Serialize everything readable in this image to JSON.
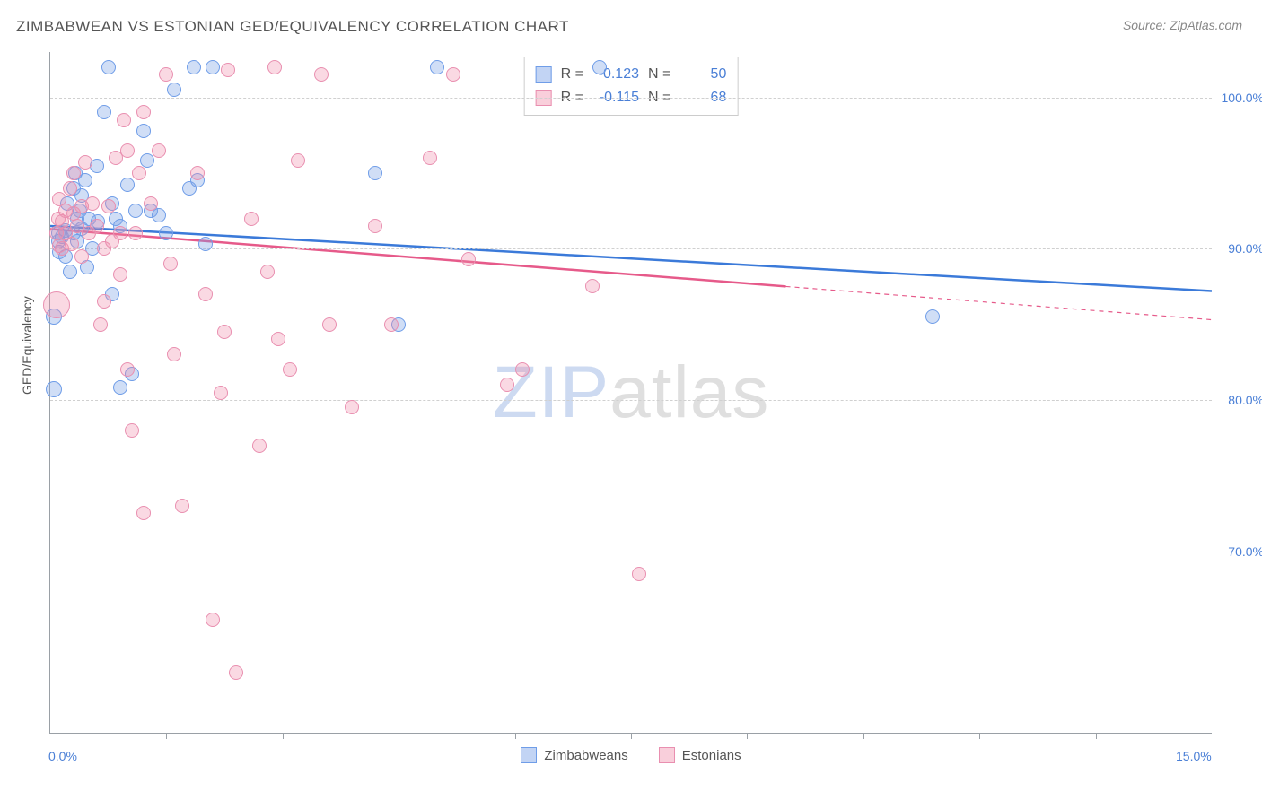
{
  "title": "ZIMBABWEAN VS ESTONIAN GED/EQUIVALENCY CORRELATION CHART",
  "source": "Source: ZipAtlas.com",
  "watermark": {
    "prefix_bold": "Z",
    "prefix_rest": "IP",
    "suffix": "atlas"
  },
  "ylabel": "GED/Equivalency",
  "chart": {
    "type": "scatter",
    "xlim": [
      0.0,
      15.0
    ],
    "ylim": [
      58.0,
      103.0
    ],
    "x_axis_labels": [
      {
        "value": 0.0,
        "text": "0.0%"
      },
      {
        "value": 15.0,
        "text": "15.0%"
      }
    ],
    "y_gridlines": [
      {
        "value": 70.0,
        "text": "70.0%"
      },
      {
        "value": 80.0,
        "text": "80.0%"
      },
      {
        "value": 90.0,
        "text": "90.0%"
      },
      {
        "value": 100.0,
        "text": "100.0%"
      }
    ],
    "x_ticks": [
      1.5,
      3.0,
      4.5,
      6.0,
      7.5,
      9.0,
      10.5,
      12.0,
      13.5
    ],
    "background_color": "#ffffff",
    "grid_color": "#d0d0d0",
    "axis_color": "#9aa0a6",
    "tick_label_color": "#4a7fd6",
    "series": [
      {
        "key": "zimbabweans",
        "label": "Zimbabweans",
        "fill": "rgba(120,160,230,0.35)",
        "stroke": "#6f9de8",
        "line_color": "#3b7ad9",
        "r_value": "-0.123",
        "n_value": "50",
        "regression": {
          "y_at_xmin": 91.5,
          "y_at_xmax": 87.2,
          "dash_from_x": null
        },
        "default_size": 16,
        "points": [
          {
            "x": 0.1,
            "y": 91.0
          },
          {
            "x": 0.1,
            "y": 90.5
          },
          {
            "x": 0.12,
            "y": 89.8
          },
          {
            "x": 0.15,
            "y": 90.8
          },
          {
            "x": 0.2,
            "y": 91.2
          },
          {
            "x": 0.2,
            "y": 89.5
          },
          {
            "x": 0.22,
            "y": 93.0
          },
          {
            "x": 0.25,
            "y": 88.5
          },
          {
            "x": 0.3,
            "y": 91.0
          },
          {
            "x": 0.3,
            "y": 94.0
          },
          {
            "x": 0.32,
            "y": 95.0
          },
          {
            "x": 0.35,
            "y": 92.0
          },
          {
            "x": 0.35,
            "y": 90.5
          },
          {
            "x": 0.38,
            "y": 92.5
          },
          {
            "x": 0.4,
            "y": 93.5
          },
          {
            "x": 0.4,
            "y": 91.3
          },
          {
            "x": 0.45,
            "y": 94.5
          },
          {
            "x": 0.48,
            "y": 88.8
          },
          {
            "x": 0.5,
            "y": 92.0
          },
          {
            "x": 0.55,
            "y": 90.0
          },
          {
            "x": 0.6,
            "y": 95.5
          },
          {
            "x": 0.62,
            "y": 91.8
          },
          {
            "x": 0.7,
            "y": 99.0
          },
          {
            "x": 0.75,
            "y": 102.0
          },
          {
            "x": 0.8,
            "y": 93.0
          },
          {
            "x": 0.8,
            "y": 87.0
          },
          {
            "x": 0.85,
            "y": 92.0
          },
          {
            "x": 0.9,
            "y": 91.5
          },
          {
            "x": 0.9,
            "y": 80.8
          },
          {
            "x": 1.0,
            "y": 94.2
          },
          {
            "x": 1.05,
            "y": 81.7
          },
          {
            "x": 1.1,
            "y": 92.5
          },
          {
            "x": 1.2,
            "y": 97.8
          },
          {
            "x": 1.25,
            "y": 95.8
          },
          {
            "x": 1.3,
            "y": 92.5
          },
          {
            "x": 1.4,
            "y": 92.2
          },
          {
            "x": 1.5,
            "y": 91.0
          },
          {
            "x": 1.6,
            "y": 100.5
          },
          {
            "x": 1.8,
            "y": 94.0
          },
          {
            "x": 1.85,
            "y": 102.0
          },
          {
            "x": 1.9,
            "y": 94.5
          },
          {
            "x": 2.0,
            "y": 90.3
          },
          {
            "x": 2.1,
            "y": 102.0
          },
          {
            "x": 4.2,
            "y": 95.0
          },
          {
            "x": 4.5,
            "y": 85.0
          },
          {
            "x": 5.0,
            "y": 102.0
          },
          {
            "x": 7.1,
            "y": 102.0
          },
          {
            "x": 11.4,
            "y": 85.5
          },
          {
            "x": 0.05,
            "y": 80.7,
            "size": 18
          },
          {
            "x": 0.05,
            "y": 85.5,
            "size": 18
          }
        ]
      },
      {
        "key": "estonians",
        "label": "Estonians",
        "fill": "rgba(240,140,170,0.33)",
        "stroke": "#e98fb0",
        "line_color": "#e65a8a",
        "r_value": "-0.115",
        "n_value": "68",
        "regression": {
          "y_at_xmin": 91.3,
          "y_at_xmax": 85.3,
          "dash_from_x": 9.5
        },
        "default_size": 16,
        "points": [
          {
            "x": 0.08,
            "y": 91.0
          },
          {
            "x": 0.1,
            "y": 92.0
          },
          {
            "x": 0.12,
            "y": 90.2
          },
          {
            "x": 0.12,
            "y": 93.3
          },
          {
            "x": 0.15,
            "y": 91.8
          },
          {
            "x": 0.15,
            "y": 90.0
          },
          {
            "x": 0.2,
            "y": 92.5
          },
          {
            "x": 0.2,
            "y": 91.0
          },
          {
            "x": 0.25,
            "y": 94.0
          },
          {
            "x": 0.28,
            "y": 90.3
          },
          {
            "x": 0.3,
            "y": 92.3
          },
          {
            "x": 0.3,
            "y": 95.0
          },
          {
            "x": 0.35,
            "y": 91.5
          },
          {
            "x": 0.4,
            "y": 92.8
          },
          {
            "x": 0.4,
            "y": 89.5
          },
          {
            "x": 0.45,
            "y": 95.7
          },
          {
            "x": 0.5,
            "y": 91.0
          },
          {
            "x": 0.55,
            "y": 93.0
          },
          {
            "x": 0.6,
            "y": 91.5
          },
          {
            "x": 0.08,
            "y": 86.3,
            "size": 30
          },
          {
            "x": 0.7,
            "y": 90.0
          },
          {
            "x": 0.7,
            "y": 86.5
          },
          {
            "x": 0.75,
            "y": 92.8
          },
          {
            "x": 0.8,
            "y": 90.5
          },
          {
            "x": 0.85,
            "y": 96.0
          },
          {
            "x": 0.9,
            "y": 91.0
          },
          {
            "x": 0.95,
            "y": 98.5
          },
          {
            "x": 1.0,
            "y": 96.5
          },
          {
            "x": 1.0,
            "y": 82.0
          },
          {
            "x": 1.05,
            "y": 78.0
          },
          {
            "x": 1.1,
            "y": 91.0
          },
          {
            "x": 1.15,
            "y": 95.0
          },
          {
            "x": 1.2,
            "y": 99.0
          },
          {
            "x": 1.3,
            "y": 93.0
          },
          {
            "x": 1.4,
            "y": 96.5
          },
          {
            "x": 1.5,
            "y": 101.5
          },
          {
            "x": 1.55,
            "y": 89.0
          },
          {
            "x": 1.6,
            "y": 83.0
          },
          {
            "x": 1.7,
            "y": 73.0
          },
          {
            "x": 1.9,
            "y": 95.0
          },
          {
            "x": 2.0,
            "y": 87.0
          },
          {
            "x": 2.1,
            "y": 65.5
          },
          {
            "x": 2.2,
            "y": 80.5
          },
          {
            "x": 2.25,
            "y": 84.5
          },
          {
            "x": 2.3,
            "y": 101.8
          },
          {
            "x": 2.4,
            "y": 62.0
          },
          {
            "x": 2.6,
            "y": 92.0
          },
          {
            "x": 2.7,
            "y": 77.0
          },
          {
            "x": 2.8,
            "y": 88.5
          },
          {
            "x": 2.9,
            "y": 102.0
          },
          {
            "x": 2.95,
            "y": 84.0
          },
          {
            "x": 3.1,
            "y": 82.0
          },
          {
            "x": 3.2,
            "y": 95.8
          },
          {
            "x": 3.5,
            "y": 101.5
          },
          {
            "x": 3.6,
            "y": 85.0
          },
          {
            "x": 3.9,
            "y": 79.5
          },
          {
            "x": 4.2,
            "y": 91.5
          },
          {
            "x": 4.4,
            "y": 85.0
          },
          {
            "x": 4.9,
            "y": 96.0
          },
          {
            "x": 5.2,
            "y": 101.5
          },
          {
            "x": 5.4,
            "y": 89.3
          },
          {
            "x": 5.9,
            "y": 81.0
          },
          {
            "x": 6.1,
            "y": 82.0
          },
          {
            "x": 7.0,
            "y": 87.5
          },
          {
            "x": 7.6,
            "y": 68.5
          },
          {
            "x": 1.2,
            "y": 72.5
          },
          {
            "x": 0.65,
            "y": 85.0
          },
          {
            "x": 0.9,
            "y": 88.3
          }
        ]
      }
    ]
  },
  "stat_legend": {
    "rows": [
      {
        "swatch_fill": "rgba(120,160,230,0.45)",
        "swatch_stroke": "#6f9de8",
        "r_label": "R =",
        "r": "-0.123",
        "n_label": "N =",
        "n": "50"
      },
      {
        "swatch_fill": "rgba(240,140,170,0.42)",
        "swatch_stroke": "#e98fb0",
        "r_label": "R =",
        "r": "-0.115",
        "n_label": "N =",
        "n": "68"
      }
    ]
  },
  "bottom_legend": [
    {
      "swatch_fill": "rgba(120,160,230,0.45)",
      "swatch_stroke": "#6f9de8",
      "label": "Zimbabweans"
    },
    {
      "swatch_fill": "rgba(240,140,170,0.42)",
      "swatch_stroke": "#e98fb0",
      "label": "Estonians"
    }
  ]
}
